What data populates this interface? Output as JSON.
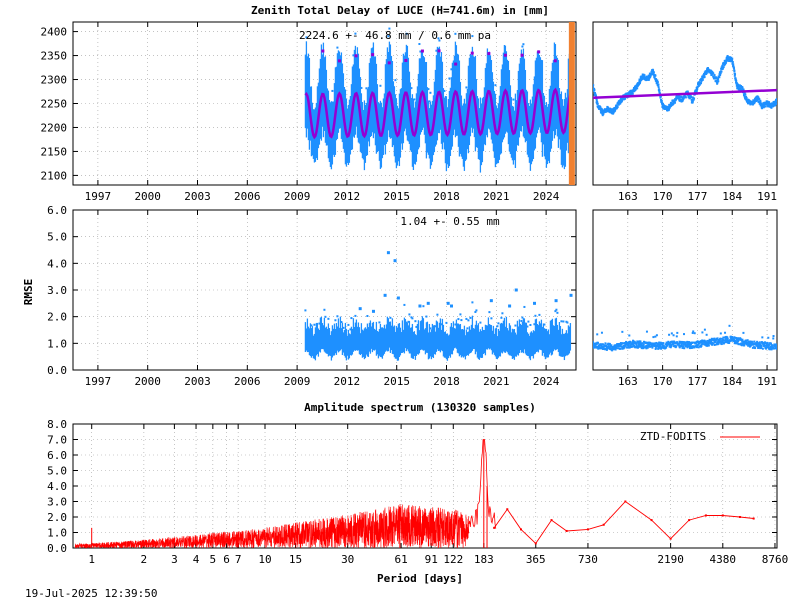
{
  "footer": {
    "timestamp": "19-Jul-2025 12:39:50"
  },
  "colors": {
    "ztd": "#1e90ff",
    "fit": "#9400d3",
    "spectrum": "#ff0000",
    "marker": "#f08030"
  },
  "chart_data": [
    {
      "type": "scatter",
      "title": "Zenith Total Delay of LUCE (H=741.6m) in [mm]",
      "annotation": "2224.6 +-  46.8 mm /  0.6 mm pa",
      "ylabel": "",
      "xlim": [
        1995.5,
        2025.8
      ],
      "ylim": [
        2080,
        2420
      ],
      "x_ticks": [
        "1997",
        "2000",
        "2003",
        "2006",
        "2009",
        "2012",
        "2015",
        "2018",
        "2021",
        "2024"
      ],
      "x_tick_values": [
        1997,
        2000,
        2003,
        2006,
        2009,
        2012,
        2015,
        2018,
        2021,
        2024
      ],
      "y_ticks": [
        "2100",
        "2150",
        "2200",
        "2250",
        "2300",
        "2350",
        "2400"
      ],
      "y_tick_values": [
        2100,
        2150,
        2200,
        2250,
        2300,
        2350,
        2400
      ],
      "data_start": 2009.5,
      "data_end": 2025.5,
      "mean": 2224.6,
      "seasonal_amplitude": 46.8,
      "fit_amplitude": 45,
      "trend_mm_per_year": 0.6,
      "current_marker_x": 2025.55,
      "grid": true
    },
    {
      "type": "scatter",
      "title": "",
      "xlabel": "",
      "ylabel": "",
      "xlim": [
        156,
        193
      ],
      "ylim": [
        2080,
        2420
      ],
      "x_ticks": [
        "163",
        "170",
        "177",
        "184",
        "191"
      ],
      "x_tick_values": [
        163,
        170,
        177,
        184,
        191
      ],
      "ztd_profile": {
        "x": [
          156,
          157,
          158,
          159,
          160,
          161,
          162,
          163,
          164,
          165,
          166,
          167,
          168,
          169,
          170,
          171,
          172,
          173,
          174,
          175,
          176,
          177,
          178,
          179,
          180,
          181,
          182,
          183,
          184,
          185,
          186,
          187,
          188,
          189,
          190,
          191,
          192,
          193
        ],
        "y": [
          2285,
          2245,
          2230,
          2240,
          2232,
          2248,
          2262,
          2268,
          2275,
          2288,
          2308,
          2300,
          2318,
          2292,
          2245,
          2238,
          2252,
          2262,
          2258,
          2272,
          2255,
          2285,
          2302,
          2320,
          2312,
          2295,
          2325,
          2345,
          2340,
          2285,
          2282,
          2255,
          2250,
          2262,
          2245,
          2250,
          2245,
          2255
        ]
      },
      "fit_line": {
        "x": [
          156,
          193
        ],
        "y": [
          2262,
          2278
        ]
      },
      "grid": true
    },
    {
      "type": "scatter",
      "title": "",
      "annotation": "1.04 +-  0.55 mm",
      "ylabel": "RMSE",
      "xlim": [
        1995.5,
        2025.8
      ],
      "ylim": [
        0,
        6
      ],
      "x_ticks": [
        "1997",
        "2000",
        "2003",
        "2006",
        "2009",
        "2012",
        "2015",
        "2018",
        "2021",
        "2024"
      ],
      "x_tick_values": [
        1997,
        2000,
        2003,
        2006,
        2009,
        2012,
        2015,
        2018,
        2021,
        2024
      ],
      "y_ticks": [
        "0.0",
        "1.0",
        "2.0",
        "3.0",
        "4.0",
        "5.0",
        "6.0"
      ],
      "y_tick_values": [
        0,
        1,
        2,
        3,
        4,
        5,
        6
      ],
      "data_start": 2009.5,
      "data_end": 2025.5,
      "mean": 1.04,
      "spread": 0.55,
      "outliers": {
        "x": [
          2012.8,
          2013.6,
          2014.3,
          2014.5,
          2014.9,
          2015.1,
          2016.4,
          2016.9,
          2018.1,
          2018.3,
          2020.7,
          2021.8,
          2022.2,
          2023.3,
          2024.6,
          2025.5
        ],
        "y": [
          2.3,
          2.2,
          2.8,
          4.4,
          4.1,
          2.7,
          2.4,
          2.5,
          2.5,
          2.4,
          2.6,
          2.4,
          3.0,
          2.5,
          2.6,
          2.8
        ]
      },
      "grid": true
    },
    {
      "type": "scatter",
      "title": "",
      "xlim": [
        156,
        193
      ],
      "ylim": [
        0,
        6
      ],
      "x_ticks": [
        "163",
        "170",
        "177",
        "184",
        "191"
      ],
      "x_tick_values": [
        163,
        170,
        177,
        184,
        191
      ],
      "rmse_profile": {
        "x": [
          156,
          160,
          164,
          168,
          172,
          176,
          180,
          184,
          188,
          193
        ],
        "y": [
          0.92,
          0.85,
          0.98,
          0.9,
          0.95,
          0.93,
          1.05,
          1.15,
          0.95,
          0.88
        ]
      },
      "grid": true
    },
    {
      "type": "line",
      "title": "Amplitude spectrum (130320 samples)",
      "xlabel": "Period [days]",
      "ylabel": "",
      "x_scale": "log",
      "xlim": [
        0.78,
        9000
      ],
      "ylim": [
        0,
        8
      ],
      "x_ticks": [
        "1",
        "2",
        "3",
        "4",
        "5",
        "6",
        "7",
        "10",
        "15",
        "30",
        "61",
        "91",
        "122",
        "183",
        "365",
        "730",
        "2190",
        "4380",
        "8760"
      ],
      "x_tick_values": [
        1,
        2,
        3,
        4,
        5,
        6,
        7,
        10,
        15,
        30,
        61,
        91,
        122,
        183,
        365,
        730,
        2190,
        4380,
        8760
      ],
      "y_ticks": [
        "0.0",
        "1.0",
        "2.0",
        "3.0",
        "4.0",
        "5.0",
        "6.0",
        "7.0",
        "8.0"
      ],
      "y_tick_values": [
        0,
        1,
        2,
        3,
        4,
        5,
        6,
        7,
        8
      ],
      "legend": "ZTD-FODITS",
      "legend_position": "top-right",
      "envelope": {
        "period": [
          0.8,
          1,
          2,
          3,
          5,
          10,
          15,
          20,
          30,
          45,
          61,
          90,
          120,
          150
        ],
        "amplitude": [
          0.25,
          0.3,
          0.5,
          0.65,
          0.9,
          1.2,
          1.5,
          1.7,
          2.0,
          2.3,
          2.6,
          2.4,
          2.3,
          2.0
        ]
      },
      "peaks": {
        "period": [
          1,
          60,
          100,
          183,
          191
        ],
        "amplitude": [
          1.3,
          2.7,
          2.6,
          7.0,
          4.0
        ]
      },
      "long_period": {
        "period": [
          210,
          250,
          300,
          365,
          450,
          550,
          730,
          900,
          1200,
          1700,
          2190,
          2800,
          3500,
          4380,
          5500,
          6600
        ],
        "amplitude": [
          1.3,
          2.5,
          1.2,
          0.3,
          1.8,
          1.1,
          1.2,
          1.5,
          3.0,
          1.8,
          0.6,
          1.8,
          2.1,
          2.1,
          2.0,
          1.9
        ]
      },
      "grid": true
    }
  ]
}
